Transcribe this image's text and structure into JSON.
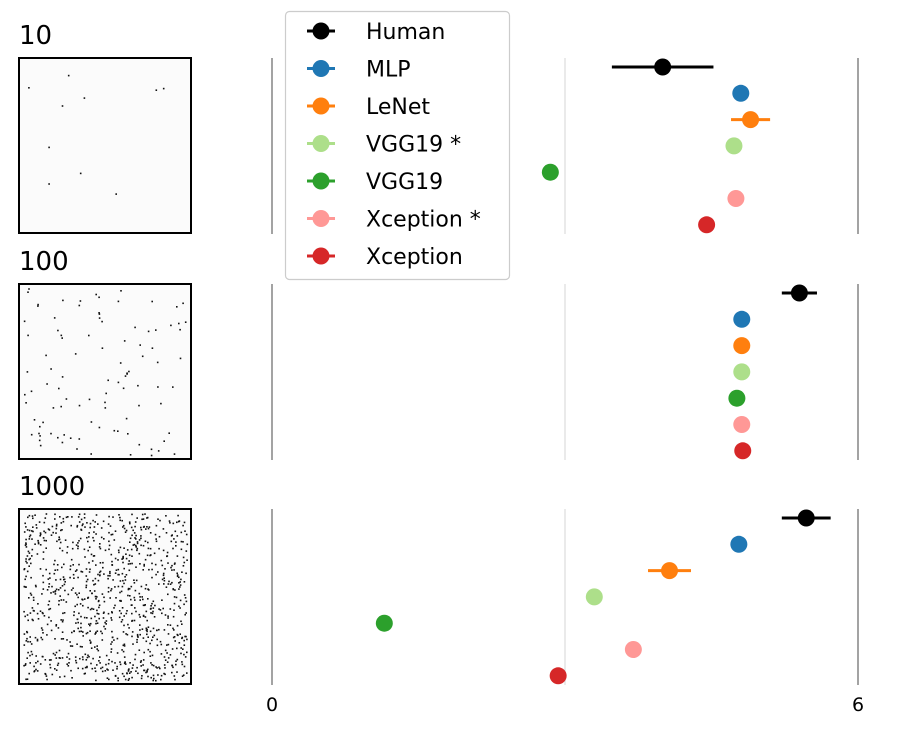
{
  "chart_data": {
    "type": "scatter",
    "orientation": "horizontal-dot-plot-with-error-bars",
    "panels": [
      {
        "label": "10",
        "image": "dot-field-sparse",
        "points": [
          {
            "series": "Human",
            "value": 4.0,
            "err": 0.52
          },
          {
            "series": "MLP",
            "value": 4.8,
            "err": 0
          },
          {
            "series": "LeNet",
            "value": 4.9,
            "err": 0.2
          },
          {
            "series": "VGG19 *",
            "value": 4.73,
            "err": 0
          },
          {
            "series": "VGG19",
            "value": 2.85,
            "err": 0
          },
          {
            "series": "Xception *",
            "value": 4.75,
            "err": 0
          },
          {
            "series": "Xception",
            "value": 4.45,
            "err": 0
          }
        ]
      },
      {
        "label": "100",
        "image": "dot-field-medium",
        "points": [
          {
            "series": "Human",
            "value": 5.4,
            "err": 0.18
          },
          {
            "series": "MLP",
            "value": 4.81,
            "err": 0
          },
          {
            "series": "LeNet",
            "value": 4.81,
            "err": 0
          },
          {
            "series": "VGG19 *",
            "value": 4.81,
            "err": 0
          },
          {
            "series": "VGG19",
            "value": 4.76,
            "err": 0
          },
          {
            "series": "Xception *",
            "value": 4.81,
            "err": 0
          },
          {
            "series": "Xception",
            "value": 4.82,
            "err": 0
          }
        ]
      },
      {
        "label": "1000",
        "image": "dot-field-dense",
        "points": [
          {
            "series": "Human",
            "value": 5.47,
            "err": 0.25
          },
          {
            "series": "MLP",
            "value": 4.78,
            "err": 0
          },
          {
            "series": "LeNet",
            "value": 4.07,
            "err": 0.22
          },
          {
            "series": "VGG19 *",
            "value": 3.3,
            "err": 0
          },
          {
            "series": "VGG19",
            "value": 1.15,
            "err": 0
          },
          {
            "series": "Xception *",
            "value": 3.7,
            "err": 0
          },
          {
            "series": "Xception",
            "value": 2.93,
            "err": 0
          }
        ]
      }
    ],
    "series": [
      {
        "name": "Human",
        "color": "#000000"
      },
      {
        "name": "MLP",
        "color": "#1f77b4"
      },
      {
        "name": "LeNet",
        "color": "#ff7f0e"
      },
      {
        "name": "VGG19 *",
        "color": "#addf8a"
      },
      {
        "name": "VGG19",
        "color": "#2ca02c"
      },
      {
        "name": "Xception *",
        "color": "#ff9896"
      },
      {
        "name": "Xception",
        "color": "#d62728"
      }
    ],
    "x_ticks": [
      0,
      6
    ],
    "xlim": [
      0,
      6
    ],
    "gridlines": [
      0,
      3,
      6
    ],
    "legend_position": "top-left",
    "title": "",
    "xlabel": "",
    "ylabel": ""
  }
}
